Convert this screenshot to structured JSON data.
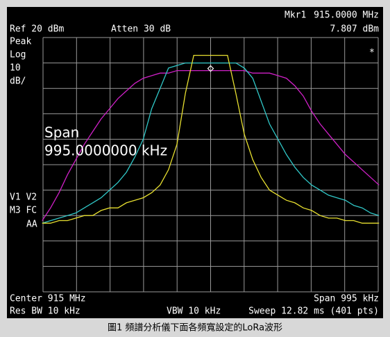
{
  "chart_data": {
    "type": "line",
    "caption": "圖1 頻譜分析儀下面各頻寬設定的LoRa波形",
    "marker": {
      "label": "Mkr1",
      "frequency": "915.0000 MHz",
      "value": 7.807,
      "value_label": "7.807 dBm"
    },
    "annotations": {
      "ref": "Ref 20 dBm",
      "atten": "Atten 30 dB",
      "detector": "Peak",
      "scale": "Log",
      "scale_value": "10",
      "scale_unit": "dB/",
      "star": "*",
      "span_title": "Span",
      "span_value": "995.0000000 kHz",
      "v1v2": "V1  V2",
      "m3fc": "M3  FC",
      "aa": "AA",
      "center": "Center 915 MHz",
      "span": "Span 995 kHz",
      "rbw": "Res BW 10 kHz",
      "vbw": "VBW 10 kHz",
      "sweep": "Sweep 12.82 ms (401 pts)"
    },
    "x": [
      -500,
      -475,
      -450,
      -425,
      -400,
      -375,
      -350,
      -325,
      -300,
      -275,
      -250,
      -225,
      -200,
      -175,
      -150,
      -125,
      -100,
      -75,
      -50,
      -25,
      0,
      25,
      50,
      75,
      100,
      125,
      150,
      175,
      200,
      225,
      250,
      275,
      300,
      325,
      350,
      375,
      400,
      425,
      450,
      475,
      500
    ],
    "xlim": [
      -497.5,
      497.5
    ],
    "xticks": [
      -497.5,
      -398,
      -298.5,
      -199,
      -99.5,
      0,
      99.5,
      199,
      298.5,
      398,
      497.5
    ],
    "ylim": [
      -80,
      20
    ],
    "yticks": [
      -80,
      -70,
      -60,
      -50,
      -40,
      -30,
      -20,
      -10,
      0,
      10,
      20
    ],
    "grid": true,
    "series": [
      {
        "color": "#d020c8",
        "values": [
          -52,
          -47,
          -41,
          -34,
          -28,
          -22,
          -17,
          -12,
          -8,
          -4,
          -1,
          2,
          4,
          5,
          6,
          6,
          7,
          7,
          7,
          7,
          7,
          7,
          7,
          7,
          7,
          6,
          6,
          6,
          5,
          4,
          1,
          -3,
          -9,
          -14,
          -18,
          -22,
          -26,
          -29,
          -32,
          -35,
          -38
        ]
      },
      {
        "color": "#30c8c8",
        "values": [
          -53,
          -52,
          -51,
          -50,
          -49,
          -47,
          -45,
          -43,
          -40,
          -37,
          -33,
          -27,
          -20,
          -8,
          0,
          8,
          9,
          10,
          10,
          10,
          10,
          10,
          10,
          10,
          8,
          4,
          -5,
          -14,
          -20,
          -26,
          -31,
          -35,
          -38,
          -40,
          -42,
          -43,
          -44,
          -46,
          -47,
          -49,
          -50
        ]
      },
      {
        "color": "#e8e030",
        "values": [
          -53,
          -53,
          -52,
          -52,
          -51,
          -50,
          -50,
          -48,
          -47,
          -47,
          -45,
          -44,
          -43,
          -41,
          -38,
          -32,
          -22,
          -2,
          13,
          13,
          13,
          13,
          13,
          -2,
          -18,
          -28,
          -35,
          -40,
          -42,
          -44,
          -45,
          -47,
          -48,
          -50,
          -51,
          -51,
          -52,
          -52,
          -53,
          -53,
          -53
        ]
      }
    ]
  }
}
